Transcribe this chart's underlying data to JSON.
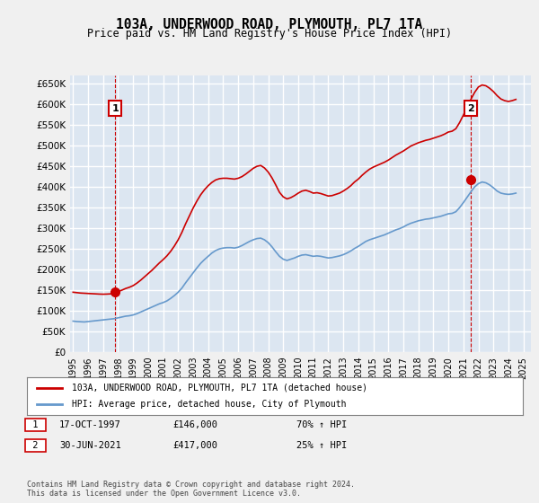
{
  "title": "103A, UNDERWOOD ROAD, PLYMOUTH, PL7 1TA",
  "subtitle": "Price paid vs. HM Land Registry's House Price Index (HPI)",
  "bg_color": "#dce6f1",
  "plot_bg_color": "#dce6f1",
  "grid_color": "#ffffff",
  "red_color": "#cc0000",
  "blue_color": "#6699cc",
  "ylim": [
    0,
    670000
  ],
  "yticks": [
    0,
    50000,
    100000,
    150000,
    200000,
    250000,
    300000,
    350000,
    400000,
    450000,
    500000,
    550000,
    600000,
    650000
  ],
  "xlabel_years": [
    "1995",
    "1996",
    "1997",
    "1998",
    "1999",
    "2000",
    "2001",
    "2002",
    "2003",
    "2004",
    "2005",
    "2006",
    "2007",
    "2008",
    "2009",
    "2010",
    "2011",
    "2012",
    "2013",
    "2014",
    "2015",
    "2016",
    "2017",
    "2018",
    "2019",
    "2020",
    "2021",
    "2022",
    "2023",
    "2024",
    "2025"
  ],
  "purchase1_date": 1997.8,
  "purchase1_price": 146000,
  "purchase2_date": 2021.5,
  "purchase2_price": 417000,
  "legend_line1": "103A, UNDERWOOD ROAD, PLYMOUTH, PL7 1TA (detached house)",
  "legend_line2": "HPI: Average price, detached house, City of Plymouth",
  "note1_num": "1",
  "note1_date": "17-OCT-1997",
  "note1_price": "£146,000",
  "note1_hpi": "70% ↑ HPI",
  "note2_num": "2",
  "note2_date": "30-JUN-2021",
  "note2_price": "£417,000",
  "note2_hpi": "25% ↑ HPI",
  "footer": "Contains HM Land Registry data © Crown copyright and database right 2024.\nThis data is licensed under the Open Government Licence v3.0.",
  "hpi_data": {
    "years": [
      1995.0,
      1995.25,
      1995.5,
      1995.75,
      1996.0,
      1996.25,
      1996.5,
      1996.75,
      1997.0,
      1997.25,
      1997.5,
      1997.75,
      1998.0,
      1998.25,
      1998.5,
      1998.75,
      1999.0,
      1999.25,
      1999.5,
      1999.75,
      2000.0,
      2000.25,
      2000.5,
      2000.75,
      2001.0,
      2001.25,
      2001.5,
      2001.75,
      2002.0,
      2002.25,
      2002.5,
      2002.75,
      2003.0,
      2003.25,
      2003.5,
      2003.75,
      2004.0,
      2004.25,
      2004.5,
      2004.75,
      2005.0,
      2005.25,
      2005.5,
      2005.75,
      2006.0,
      2006.25,
      2006.5,
      2006.75,
      2007.0,
      2007.25,
      2007.5,
      2007.75,
      2008.0,
      2008.25,
      2008.5,
      2008.75,
      2009.0,
      2009.25,
      2009.5,
      2009.75,
      2010.0,
      2010.25,
      2010.5,
      2010.75,
      2011.0,
      2011.25,
      2011.5,
      2011.75,
      2012.0,
      2012.25,
      2012.5,
      2012.75,
      2013.0,
      2013.25,
      2013.5,
      2013.75,
      2014.0,
      2014.25,
      2014.5,
      2014.75,
      2015.0,
      2015.25,
      2015.5,
      2015.75,
      2016.0,
      2016.25,
      2016.5,
      2016.75,
      2017.0,
      2017.25,
      2017.5,
      2017.75,
      2018.0,
      2018.25,
      2018.5,
      2018.75,
      2019.0,
      2019.25,
      2019.5,
      2019.75,
      2020.0,
      2020.25,
      2020.5,
      2020.75,
      2021.0,
      2021.25,
      2021.5,
      2021.75,
      2022.0,
      2022.25,
      2022.5,
      2022.75,
      2023.0,
      2023.25,
      2023.5,
      2023.75,
      2024.0,
      2024.25,
      2024.5
    ],
    "values": [
      75000,
      74000,
      73500,
      73000,
      74000,
      75000,
      76000,
      77000,
      78000,
      79000,
      80000,
      81000,
      83000,
      85000,
      87000,
      88000,
      90000,
      93000,
      97000,
      101000,
      105000,
      109000,
      113000,
      117000,
      120000,
      124000,
      130000,
      137000,
      145000,
      155000,
      168000,
      180000,
      192000,
      204000,
      215000,
      224000,
      232000,
      240000,
      246000,
      250000,
      252000,
      253000,
      253000,
      252000,
      254000,
      258000,
      263000,
      268000,
      272000,
      275000,
      276000,
      272000,
      265000,
      255000,
      243000,
      232000,
      225000,
      222000,
      225000,
      228000,
      232000,
      235000,
      236000,
      234000,
      232000,
      233000,
      232000,
      230000,
      228000,
      229000,
      231000,
      233000,
      236000,
      240000,
      245000,
      251000,
      256000,
      262000,
      268000,
      272000,
      275000,
      278000,
      281000,
      284000,
      288000,
      292000,
      296000,
      299000,
      303000,
      308000,
      312000,
      315000,
      318000,
      320000,
      322000,
      323000,
      325000,
      327000,
      329000,
      332000,
      335000,
      336000,
      340000,
      350000,
      362000,
      375000,
      388000,
      400000,
      408000,
      412000,
      410000,
      405000,
      398000,
      390000,
      385000,
      383000,
      382000,
      383000,
      385000
    ]
  },
  "property_data": {
    "years": [
      1995.0,
      1995.25,
      1995.5,
      1995.75,
      1996.0,
      1996.25,
      1996.5,
      1996.75,
      1997.0,
      1997.25,
      1997.5,
      1997.75,
      1998.0,
      1998.25,
      1998.5,
      1998.75,
      1999.0,
      1999.25,
      1999.5,
      1999.75,
      2000.0,
      2000.25,
      2000.5,
      2000.75,
      2001.0,
      2001.25,
      2001.5,
      2001.75,
      2002.0,
      2002.25,
      2002.5,
      2002.75,
      2003.0,
      2003.25,
      2003.5,
      2003.75,
      2004.0,
      2004.25,
      2004.5,
      2004.75,
      2005.0,
      2005.25,
      2005.5,
      2005.75,
      2006.0,
      2006.25,
      2006.5,
      2006.75,
      2007.0,
      2007.25,
      2007.5,
      2007.75,
      2008.0,
      2008.25,
      2008.5,
      2008.75,
      2009.0,
      2009.25,
      2009.5,
      2009.75,
      2010.0,
      2010.25,
      2010.5,
      2010.75,
      2011.0,
      2011.25,
      2011.5,
      2011.75,
      2012.0,
      2012.25,
      2012.5,
      2012.75,
      2013.0,
      2013.25,
      2013.5,
      2013.75,
      2014.0,
      2014.25,
      2014.5,
      2014.75,
      2015.0,
      2015.25,
      2015.5,
      2015.75,
      2016.0,
      2016.25,
      2016.5,
      2016.75,
      2017.0,
      2017.25,
      2017.5,
      2017.75,
      2018.0,
      2018.25,
      2018.5,
      2018.75,
      2019.0,
      2019.25,
      2019.5,
      2019.75,
      2020.0,
      2020.25,
      2020.5,
      2020.75,
      2021.0,
      2021.25,
      2021.5,
      2021.75,
      2022.0,
      2022.25,
      2022.5,
      2022.75,
      2023.0,
      2023.25,
      2023.5,
      2023.75,
      2024.0,
      2024.25,
      2024.5
    ],
    "values": [
      145000,
      144000,
      143000,
      142500,
      142000,
      141500,
      141000,
      140500,
      140200,
      140500,
      141000,
      143000,
      146500,
      150000,
      154000,
      157000,
      161000,
      167000,
      174000,
      182000,
      190000,
      198000,
      207000,
      216000,
      224000,
      233000,
      244000,
      257000,
      272000,
      290000,
      311000,
      330000,
      349000,
      366000,
      381000,
      393000,
      403000,
      411000,
      417000,
      420000,
      421000,
      421000,
      420000,
      419000,
      421000,
      425000,
      431000,
      438000,
      445000,
      450000,
      452000,
      446000,
      436000,
      422000,
      405000,
      387000,
      376000,
      371000,
      374000,
      379000,
      385000,
      390000,
      392000,
      389000,
      385000,
      386000,
      384000,
      381000,
      378000,
      379000,
      382000,
      385000,
      390000,
      396000,
      403000,
      412000,
      419000,
      428000,
      436000,
      443000,
      448000,
      452000,
      456000,
      460000,
      465000,
      471000,
      477000,
      482000,
      487000,
      493000,
      499000,
      503000,
      507000,
      510000,
      513000,
      515000,
      518000,
      521000,
      524000,
      528000,
      533000,
      535000,
      541000,
      556000,
      574000,
      593000,
      612000,
      629000,
      642000,
      647000,
      645000,
      639000,
      631000,
      621000,
      613000,
      609000,
      607000,
      609000,
      612000
    ]
  }
}
